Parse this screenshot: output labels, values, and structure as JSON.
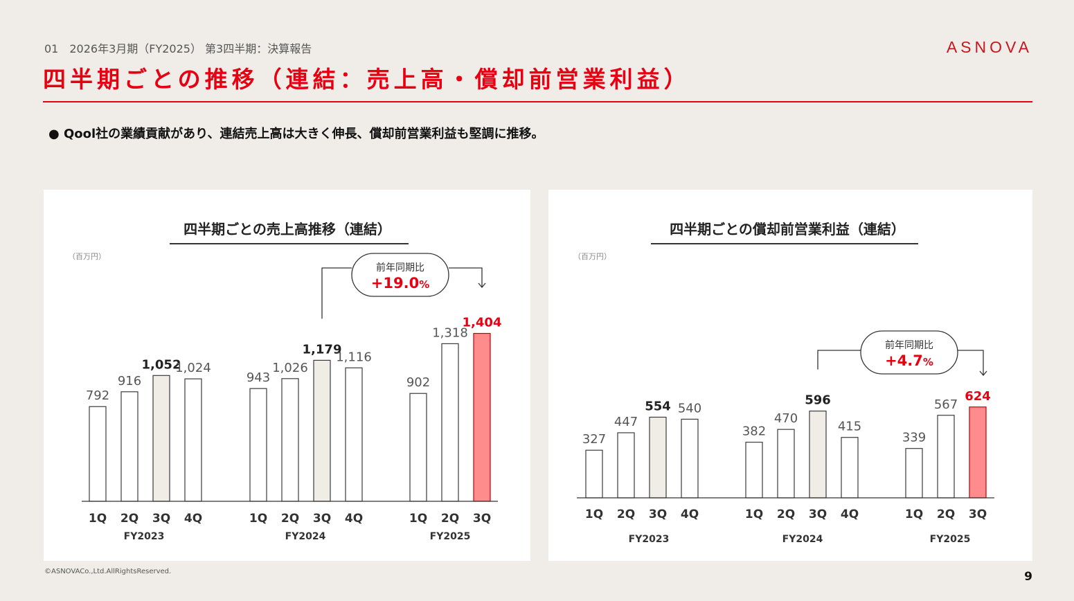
{
  "header": {
    "breadcrumb": "01　2026年3月期（FY2025） 第3四半期：決算報告",
    "title": "四半期ごとの推移（連結：売上高・償却前営業利益）",
    "logo": "ASNOVA"
  },
  "summary": {
    "bullet": "● Qool社の業績貢献があり、連結売上高は大きく伸長、償却前営業利益も堅調に推移。"
  },
  "footer": {
    "copyright": "©ASNOVACo.,Ltd.AllRightsReserved.",
    "page_number": "9"
  },
  "colors": {
    "accent": "#e60012",
    "highlight_bar": "#ff8c8c",
    "highlight_label": "#e60012",
    "q3_bar": "#f0ede6",
    "normal_bar": "#ffffff",
    "bar_stroke": "#3a3a3a"
  },
  "chart_data": [
    {
      "type": "bar",
      "title": "四半期ごとの売上高推移（連結）",
      "unit": "（百万円）",
      "categories": [
        "1Q",
        "2Q",
        "3Q",
        "4Q",
        "1Q",
        "2Q",
        "3Q",
        "4Q",
        "1Q",
        "2Q",
        "3Q"
      ],
      "groups": [
        {
          "name": "FY2023",
          "size": 4
        },
        {
          "name": "FY2024",
          "size": 4
        },
        {
          "name": "FY2025",
          "size": 3
        }
      ],
      "values": [
        792,
        916,
        1052,
        1024,
        943,
        1026,
        1179,
        1116,
        902,
        1318,
        1404
      ],
      "value_labels": [
        "792",
        "916",
        "1,052",
        "1,024",
        "943",
        "1,026",
        "1,179",
        "1,116",
        "902",
        "1,318",
        "1,404"
      ],
      "bold_indices": [
        2,
        6,
        10
      ],
      "ylim": [
        0,
        1500
      ],
      "yoy": {
        "label": "前年同期比",
        "value": "+19.0",
        "suffix": "%",
        "from_index": 6,
        "to_index": 10
      }
    },
    {
      "type": "bar",
      "title": "四半期ごとの償却前営業利益（連結）",
      "unit": "（百万円）",
      "categories": [
        "1Q",
        "2Q",
        "3Q",
        "4Q",
        "1Q",
        "2Q",
        "3Q",
        "4Q",
        "1Q",
        "2Q",
        "3Q"
      ],
      "groups": [
        {
          "name": "FY2023",
          "size": 4
        },
        {
          "name": "FY2024",
          "size": 4
        },
        {
          "name": "FY2025",
          "size": 3
        }
      ],
      "values": [
        327,
        447,
        554,
        540,
        382,
        470,
        596,
        415,
        339,
        567,
        624
      ],
      "value_labels": [
        "327",
        "447",
        "554",
        "540",
        "382",
        "470",
        "596",
        "415",
        "339",
        "567",
        "624"
      ],
      "bold_indices": [
        2,
        6,
        10
      ],
      "ylim": [
        0,
        1000
      ],
      "yoy": {
        "label": "前年同期比",
        "value": "+4.7",
        "suffix": "%",
        "from_index": 6,
        "to_index": 10
      }
    }
  ]
}
